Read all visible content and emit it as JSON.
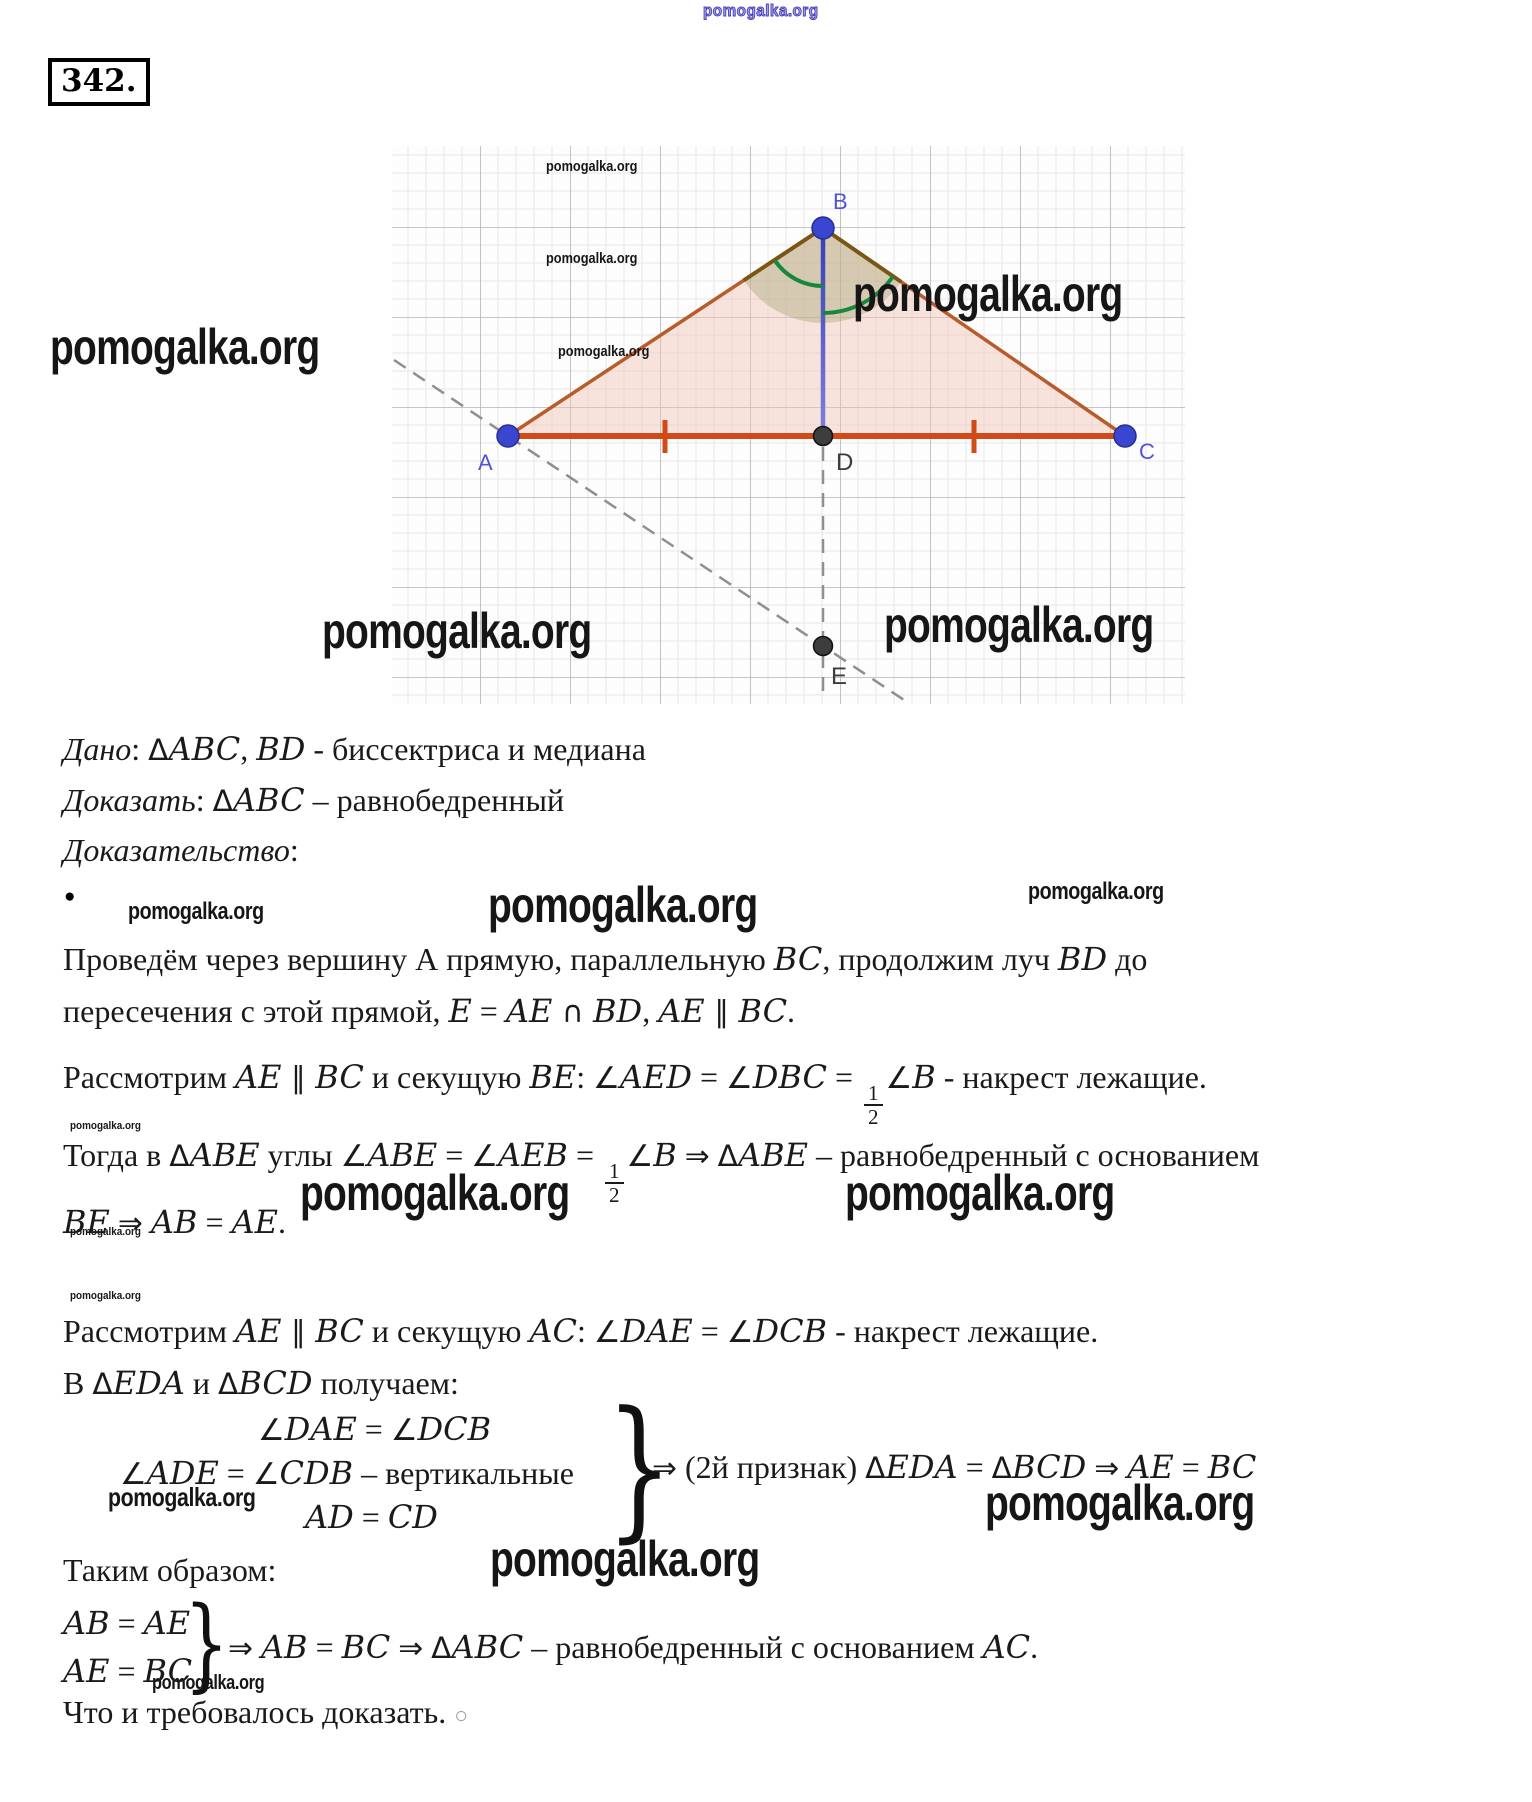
{
  "watermark": {
    "text": "pomogalka.org"
  },
  "problem": {
    "number": "342."
  },
  "bullet": "●",
  "brace": "}",
  "figure": {
    "labels": {
      "A": "A",
      "B": "B",
      "C": "C",
      "D": "D",
      "E": "E"
    }
  },
  "lines": {
    "dano": [
      {
        "t": "Дано",
        "i": 1
      },
      {
        "t": ": "
      },
      {
        "t": "Δ",
        "s": 1
      },
      {
        "t": "ABC",
        "m": 1
      },
      {
        "t": ", "
      },
      {
        "t": "BD",
        "m": 1
      },
      {
        "t": " - биссектриса и медиана"
      }
    ],
    "dokazat": [
      {
        "t": "Доказать",
        "i": 1
      },
      {
        "t": ": "
      },
      {
        "t": "Δ",
        "s": 1
      },
      {
        "t": "ABC",
        "m": 1
      },
      {
        "t": " – равнобедренный"
      }
    ],
    "dokazatelstvo": [
      {
        "t": "Доказательство",
        "i": 1
      },
      {
        "t": ":"
      }
    ],
    "p1a": [
      {
        "t": "Проведём через вершину А прямую, параллельную "
      },
      {
        "t": "BC",
        "m": 1
      },
      {
        "t": ", продолжим луч "
      },
      {
        "t": "BD",
        "m": 1
      },
      {
        "t": " до"
      }
    ],
    "p1b": [
      {
        "t": "пересечения с этой прямой, "
      },
      {
        "t": "E",
        "m": 1
      },
      {
        "t": " = "
      },
      {
        "t": "AE",
        "m": 1
      },
      {
        "t": " ∩ ",
        "s": 1
      },
      {
        "t": "BD",
        "m": 1
      },
      {
        "t": ", "
      },
      {
        "t": "AE",
        "m": 1
      },
      {
        "t": " ∥ ",
        "s": 1
      },
      {
        "t": "BC",
        "m": 1
      },
      {
        "t": "."
      }
    ],
    "p2": [
      {
        "t": "Рассмотрим "
      },
      {
        "t": "AE",
        "m": 1
      },
      {
        "t": " ∥ ",
        "s": 1
      },
      {
        "t": "BC",
        "m": 1
      },
      {
        "t": " и секущую "
      },
      {
        "t": "BE",
        "m": 1
      },
      {
        "t": ": "
      },
      {
        "t": "∠",
        "s": 1
      },
      {
        "t": "AED",
        "m": 1
      },
      {
        "t": " = "
      },
      {
        "t": "∠",
        "s": 1
      },
      {
        "t": "DBC",
        "m": 1
      },
      {
        "t": " = "
      },
      {
        "f": [
          "1",
          "2"
        ]
      },
      {
        "t": "∠",
        "s": 1
      },
      {
        "t": "B",
        "m": 1
      },
      {
        "t": " - накрест лежащие."
      }
    ],
    "p3a": [
      {
        "t": "Тогда в "
      },
      {
        "t": "Δ",
        "s": 1
      },
      {
        "t": "ABE",
        "m": 1
      },
      {
        "t": " углы "
      },
      {
        "t": "∠",
        "s": 1
      },
      {
        "t": "ABE",
        "m": 1
      },
      {
        "t": " = "
      },
      {
        "t": "∠",
        "s": 1
      },
      {
        "t": "AEB",
        "m": 1
      },
      {
        "t": " = "
      },
      {
        "f": [
          "1",
          "2"
        ]
      },
      {
        "t": "∠",
        "s": 1
      },
      {
        "t": "B",
        "m": 1
      },
      {
        "t": "  "
      },
      {
        "t": "⇒",
        "s": 1
      },
      {
        "t": " "
      },
      {
        "t": "Δ",
        "s": 1
      },
      {
        "t": "ABE",
        "m": 1
      },
      {
        "t": " – равнобедренный с основанием"
      }
    ],
    "p3b": [
      {
        "t": "BE",
        "m": 1
      },
      {
        "t": " "
      },
      {
        "t": "⇒",
        "s": 1
      },
      {
        "t": " "
      },
      {
        "t": "AB",
        "m": 1
      },
      {
        "t": " = "
      },
      {
        "t": "AE",
        "m": 1
      },
      {
        "t": "."
      }
    ],
    "p4": [
      {
        "t": "Рассмотрим "
      },
      {
        "t": "AE",
        "m": 1
      },
      {
        "t": " ∥ ",
        "s": 1
      },
      {
        "t": "BC",
        "m": 1
      },
      {
        "t": " и секущую "
      },
      {
        "t": "AC",
        "m": 1
      },
      {
        "t": ": "
      },
      {
        "t": "∠",
        "s": 1
      },
      {
        "t": "DAE",
        "m": 1
      },
      {
        "t": " = "
      },
      {
        "t": "∠",
        "s": 1
      },
      {
        "t": "DCB",
        "m": 1
      },
      {
        "t": " - накрест лежащие."
      }
    ],
    "p5": [
      {
        "t": "В "
      },
      {
        "t": "Δ",
        "s": 1
      },
      {
        "t": "EDA",
        "m": 1
      },
      {
        "t": " и "
      },
      {
        "t": "Δ",
        "s": 1
      },
      {
        "t": "BCD",
        "m": 1
      },
      {
        "t": "  получаем:"
      }
    ],
    "sys1_row1": [
      {
        "t": "∠",
        "s": 1
      },
      {
        "t": "DAE",
        "m": 1
      },
      {
        "t": " = "
      },
      {
        "t": "∠",
        "s": 1
      },
      {
        "t": "DCB",
        "m": 1
      }
    ],
    "sys1_row2": [
      {
        "t": "∠",
        "s": 1
      },
      {
        "t": "ADE",
        "m": 1
      },
      {
        "t": " = "
      },
      {
        "t": "∠",
        "s": 1
      },
      {
        "t": "CDB",
        "m": 1
      },
      {
        "t": " – вертикальные"
      }
    ],
    "sys1_row3": [
      {
        "t": "AD",
        "m": 1
      },
      {
        "t": " = "
      },
      {
        "t": "CD",
        "m": 1
      }
    ],
    "sys1_after": [
      {
        "t": "⇒",
        "s": 1
      },
      {
        "t": " (2й признак) "
      },
      {
        "t": "Δ",
        "s": 1
      },
      {
        "t": "EDA",
        "m": 1
      },
      {
        "t": " = "
      },
      {
        "t": "Δ",
        "s": 1
      },
      {
        "t": "BCD",
        "m": 1
      },
      {
        "t": " "
      },
      {
        "t": "⇒",
        "s": 1
      },
      {
        "t": " "
      },
      {
        "t": "AE",
        "m": 1
      },
      {
        "t": " = "
      },
      {
        "t": "BC",
        "m": 1
      }
    ],
    "takim": [
      {
        "t": "Таким образом:"
      }
    ],
    "sys2_row1": [
      {
        "t": "AB",
        "m": 1
      },
      {
        "t": " = "
      },
      {
        "t": "AE",
        "m": 1
      }
    ],
    "sys2_row2": [
      {
        "t": "AE",
        "m": 1
      },
      {
        "t": " = "
      },
      {
        "t": "BC",
        "m": 1
      }
    ],
    "sys2_after": [
      {
        "t": "⇒",
        "s": 1
      },
      {
        "t": " "
      },
      {
        "t": "AB",
        "m": 1
      },
      {
        "t": " = "
      },
      {
        "t": "BC",
        "m": 1
      },
      {
        "t": " "
      },
      {
        "t": "⇒",
        "s": 1
      },
      {
        "t": " "
      },
      {
        "t": "Δ",
        "s": 1
      },
      {
        "t": "ABC",
        "m": 1
      },
      {
        "t": " – равнобедренный с основанием "
      },
      {
        "t": "AC",
        "m": 1
      },
      {
        "t": "."
      }
    ],
    "qed": [
      {
        "t": "Что и требовалось доказать. "
      },
      {
        "t": "○",
        "c": 1
      }
    ]
  }
}
